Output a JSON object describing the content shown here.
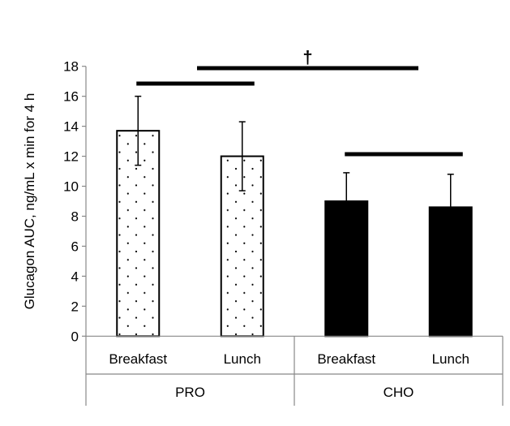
{
  "chart_data": {
    "type": "bar",
    "ylabel": "Glucagon  AUC, ng/mL x min for 4 h",
    "ylim": [
      0,
      18
    ],
    "yticks": [
      0,
      2,
      4,
      6,
      8,
      10,
      12,
      14,
      16,
      18
    ],
    "grid": false,
    "categories": [
      "Breakfast",
      "Lunch",
      "Breakfast",
      "Lunch"
    ],
    "groups": [
      {
        "label": "PRO",
        "fill": "dotted"
      },
      {
        "label": "CHO",
        "fill": "#000000"
      }
    ],
    "values": [
      13.7,
      12.0,
      9.0,
      8.6
    ],
    "error": [
      2.3,
      2.3,
      1.9,
      2.2
    ],
    "significance": [
      {
        "from": 0,
        "to": 1,
        "label": ""
      },
      {
        "from": 0.6,
        "to": 2.7,
        "label": "†"
      },
      {
        "from": 2,
        "to": 3,
        "label": ""
      }
    ]
  }
}
